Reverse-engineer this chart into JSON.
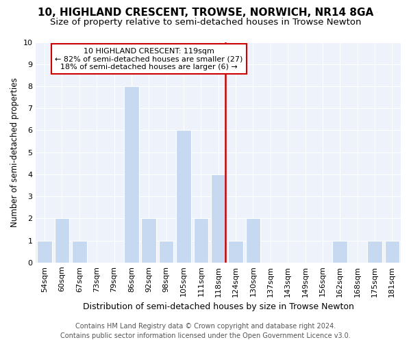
{
  "title": "10, HIGHLAND CRESCENT, TROWSE, NORWICH, NR14 8GA",
  "subtitle": "Size of property relative to semi-detached houses in Trowse Newton",
  "xlabel": "Distribution of semi-detached houses by size in Trowse Newton",
  "ylabel": "Number of semi-detached properties",
  "categories": [
    "54sqm",
    "60sqm",
    "67sqm",
    "73sqm",
    "79sqm",
    "86sqm",
    "92sqm",
    "98sqm",
    "105sqm",
    "111sqm",
    "118sqm",
    "124sqm",
    "130sqm",
    "137sqm",
    "143sqm",
    "149sqm",
    "156sqm",
    "162sqm",
    "168sqm",
    "175sqm",
    "181sqm"
  ],
  "values": [
    1,
    2,
    1,
    0,
    0,
    8,
    2,
    1,
    6,
    2,
    4,
    1,
    2,
    0,
    0,
    0,
    0,
    1,
    0,
    1,
    1
  ],
  "vline_index": 10,
  "bar_color": "#c6d9f1",
  "vline_color": "#cc0000",
  "annotation_text": "10 HIGHLAND CRESCENT: 119sqm\n← 82% of semi-detached houses are smaller (27)\n18% of semi-detached houses are larger (6) →",
  "annotation_box_edgecolor": "#cc0000",
  "ylim": [
    0,
    10
  ],
  "yticks": [
    0,
    1,
    2,
    3,
    4,
    5,
    6,
    7,
    8,
    9,
    10
  ],
  "footer": "Contains HM Land Registry data © Crown copyright and database right 2024.\nContains public sector information licensed under the Open Government Licence v3.0.",
  "title_fontsize": 11,
  "subtitle_fontsize": 9.5,
  "xlabel_fontsize": 9,
  "ylabel_fontsize": 8.5,
  "tick_fontsize": 8,
  "ann_fontsize": 8,
  "footer_fontsize": 7,
  "plot_bg_color": "#eef2fb"
}
